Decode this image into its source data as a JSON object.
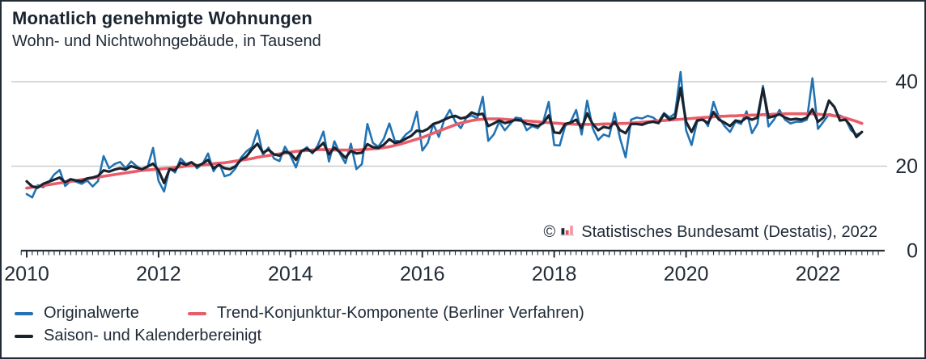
{
  "header": {
    "title": "Monatlich genehmigte Wohnungen",
    "subtitle": "Wohn- und Nichtwohngebäude, in Tausend"
  },
  "source": {
    "copyright": "©",
    "icon": "destatis-bars-icon",
    "text": "Statistisches Bundesamt (Destatis), 2022"
  },
  "legend": [
    {
      "label": "Originalwerte",
      "color": "#2173b4"
    },
    {
      "label": "Trend-Konjunktur-Komponente (Berliner Verfahren)",
      "color": "#e85d6a"
    },
    {
      "label": "Saison- und Kalenderbereinigt",
      "color": "#1a222e"
    }
  ],
  "colors": {
    "grid": "#cccccc",
    "axis": "#28303c",
    "text": "#222b36",
    "icon_dark": "#1c2733",
    "icon_red": "#e8505f",
    "icon_pink": "#f29ba4"
  },
  "chart_data": {
    "type": "line",
    "title": "Monatlich genehmigte Wohnungen",
    "subtitle": "Wohn- und Nichtwohngebäude, in Tausend",
    "unit": "Tausend Wohnungen",
    "frequency": "monthly",
    "x_start": "2010-01",
    "x_end": "2022-09",
    "x_ticks": [
      2010,
      2012,
      2014,
      2016,
      2018,
      2020,
      2022
    ],
    "y_ticks": [
      0,
      20,
      40
    ],
    "ylim": [
      0,
      44
    ],
    "grid": "horizontal gridlines at 20 and 40",
    "legend_position": "bottom-left",
    "series": [
      {
        "name": "Originalwerte",
        "color": "#2173b4",
        "values": [
          13.4,
          12.6,
          15.5,
          15.0,
          16.2,
          18.0,
          19.1,
          15.3,
          16.5,
          16.3,
          15.8,
          16.6,
          15.2,
          16.5,
          22.4,
          19.5,
          20.5,
          21.0,
          19.5,
          21.1,
          20.0,
          19.0,
          19.8,
          24.3,
          16.5,
          14.0,
          19.5,
          18.5,
          21.8,
          20.5,
          21.0,
          19.5,
          20.5,
          23.0,
          18.8,
          20.8,
          17.6,
          18.0,
          19.5,
          22.0,
          23.5,
          24.5,
          28.5,
          22.7,
          24.4,
          21.8,
          21.2,
          24.6,
          22.5,
          19.7,
          23.5,
          24.5,
          23.0,
          25.0,
          28.2,
          21.1,
          25.9,
          23.0,
          20.7,
          25.3,
          19.3,
          20.5,
          30.0,
          25.5,
          24.6,
          26.5,
          30.1,
          26.0,
          25.9,
          27.5,
          28.5,
          32.9,
          23.7,
          25.5,
          30.0,
          26.9,
          31.0,
          33.3,
          30.5,
          29.0,
          31.5,
          32.0,
          31.3,
          36.4,
          26.0,
          27.5,
          30.5,
          28.5,
          30.0,
          31.5,
          31.3,
          28.5,
          29.5,
          29.0,
          30.5,
          35.2,
          25.0,
          24.9,
          29.5,
          30.5,
          33.3,
          27.5,
          35.5,
          29.0,
          26.2,
          27.5,
          27.0,
          32.6,
          26.5,
          22.1,
          31.0,
          31.5,
          31.3,
          31.9,
          31.5,
          30.5,
          32.6,
          31.5,
          32.5,
          42.3,
          28.5,
          25.0,
          30.5,
          31.5,
          29.5,
          35.2,
          31.5,
          29.5,
          28.1,
          30.5,
          30.0,
          33.0,
          27.8,
          30.0,
          39.0,
          29.4,
          31.0,
          33.3,
          31.0,
          30.1,
          30.5,
          30.5,
          31.0,
          40.8,
          28.8,
          30.5,
          32.3,
          32.0,
          32.0,
          31.3,
          28.5,
          27.5,
          28.0
        ]
      },
      {
        "name": "Trend-Konjunktur-Komponente (Berliner Verfahren)",
        "color": "#e85d6a",
        "values": [
          14.8,
          15.0,
          15.2,
          15.4,
          15.6,
          15.8,
          16.0,
          16.2,
          16.4,
          16.6,
          16.8,
          17.0,
          17.2,
          17.4,
          17.6,
          17.8,
          18.0,
          18.2,
          18.4,
          18.6,
          18.8,
          19.0,
          19.1,
          19.2,
          19.3,
          19.4,
          19.5,
          19.7,
          19.8,
          20.0,
          20.1,
          20.2,
          20.3,
          20.4,
          20.6,
          20.7,
          20.8,
          21.0,
          21.2,
          21.4,
          21.6,
          21.8,
          22.1,
          22.3,
          22.5,
          22.7,
          22.9,
          23.1,
          23.3,
          23.5,
          23.6,
          23.7,
          23.8,
          23.9,
          23.9,
          23.9,
          23.8,
          23.8,
          23.8,
          23.8,
          23.8,
          23.9,
          24.0,
          24.1,
          24.2,
          24.4,
          24.6,
          24.9,
          25.2,
          25.6,
          26.0,
          26.4,
          26.8,
          27.3,
          27.8,
          28.3,
          28.8,
          29.3,
          29.8,
          30.2,
          30.5,
          30.8,
          31.0,
          31.1,
          31.2,
          31.2,
          31.2,
          31.1,
          31.0,
          30.9,
          30.8,
          30.7,
          30.6,
          30.5,
          30.4,
          30.3,
          30.2,
          30.1,
          30.0,
          30.0,
          29.9,
          29.9,
          29.9,
          29.9,
          29.9,
          30.0,
          30.0,
          30.0,
          30.1,
          30.1,
          30.2,
          30.3,
          30.4,
          30.5,
          30.6,
          30.7,
          30.8,
          30.9,
          31.0,
          31.1,
          31.2,
          31.3,
          31.4,
          31.5,
          31.6,
          31.7,
          31.8,
          31.8,
          31.9,
          31.9,
          32.0,
          32.0,
          32.1,
          32.1,
          32.2,
          32.2,
          32.3,
          32.3,
          32.4,
          32.4,
          32.4,
          32.4,
          32.4,
          32.4,
          32.3,
          32.2,
          32.1,
          31.9,
          31.7,
          31.4,
          31.0,
          30.6,
          30.1
        ]
      },
      {
        "name": "Saison- und Kalenderbereinigt",
        "color": "#1a222e",
        "values": [
          16.4,
          15.2,
          14.9,
          15.8,
          16.3,
          16.8,
          17.3,
          16.2,
          16.9,
          16.6,
          16.4,
          17.1,
          17.3,
          17.7,
          19.0,
          18.7,
          19.2,
          19.5,
          19.2,
          20.0,
          19.6,
          19.3,
          19.9,
          20.6,
          19.0,
          16.0,
          19.3,
          19.0,
          20.8,
          20.3,
          20.9,
          20.0,
          20.6,
          21.5,
          19.5,
          20.3,
          19.5,
          19.3,
          20.0,
          21.5,
          22.3,
          24.0,
          25.3,
          23.2,
          23.9,
          22.8,
          22.5,
          23.4,
          23.0,
          21.5,
          23.6,
          24.1,
          23.3,
          24.3,
          25.5,
          22.8,
          24.4,
          23.3,
          22.0,
          23.6,
          23.0,
          23.2,
          25.2,
          24.5,
          24.3,
          25.1,
          26.4,
          25.5,
          25.8,
          26.5,
          27.2,
          28.4,
          28.2,
          28.8,
          30.0,
          30.4,
          31.0,
          31.6,
          31.9,
          31.3,
          31.6,
          32.7,
          32.2,
          32.4,
          29.5,
          30.1,
          30.8,
          30.2,
          30.5,
          31.0,
          30.8,
          30.0,
          29.8,
          29.5,
          30.2,
          32.0,
          28.0,
          27.8,
          30.0,
          30.3,
          31.0,
          29.0,
          32.5,
          30.0,
          28.5,
          29.3,
          29.0,
          30.5,
          28.5,
          27.8,
          30.0,
          30.0,
          29.8,
          30.3,
          30.5,
          30.2,
          32.3,
          31.0,
          31.5,
          38.5,
          30.5,
          28.1,
          30.8,
          31.0,
          30.2,
          32.8,
          31.0,
          30.3,
          29.5,
          30.8,
          30.5,
          31.5,
          31.0,
          31.5,
          38.4,
          31.5,
          31.8,
          32.3,
          31.5,
          31.0,
          31.2,
          31.0,
          31.5,
          33.5,
          30.5,
          31.5,
          35.5,
          34.0,
          30.8,
          31.0,
          29.5,
          26.9,
          28.1
        ]
      }
    ]
  }
}
